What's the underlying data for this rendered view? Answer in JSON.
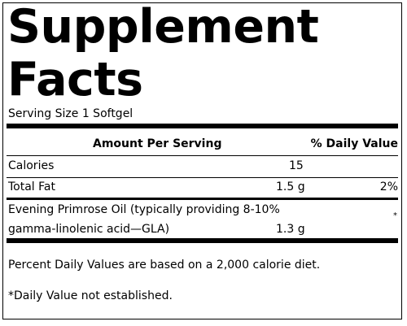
{
  "label": {
    "title_line1": "Supplement",
    "title_line2": "Facts",
    "serving_size": "Serving Size 1 Softgel",
    "header": {
      "amount_per_serving": "Amount Per Serving",
      "daily_value": "% Daily Value"
    },
    "rows": [
      {
        "name": "Calories",
        "amount": "15",
        "dv": ""
      },
      {
        "name": "Total Fat",
        "amount": "1.5 g",
        "dv": "2%"
      },
      {
        "name_line1": "Evening Primrose Oil (typically providing 8-10%",
        "name_line2": "gamma-linolenic acid—GLA)",
        "amount": "1.3 g",
        "dv": "*"
      }
    ],
    "footnote_percent": "Percent Daily Values are based on a 2,000 calorie diet.",
    "footnote_star": "*Daily Value not established."
  }
}
